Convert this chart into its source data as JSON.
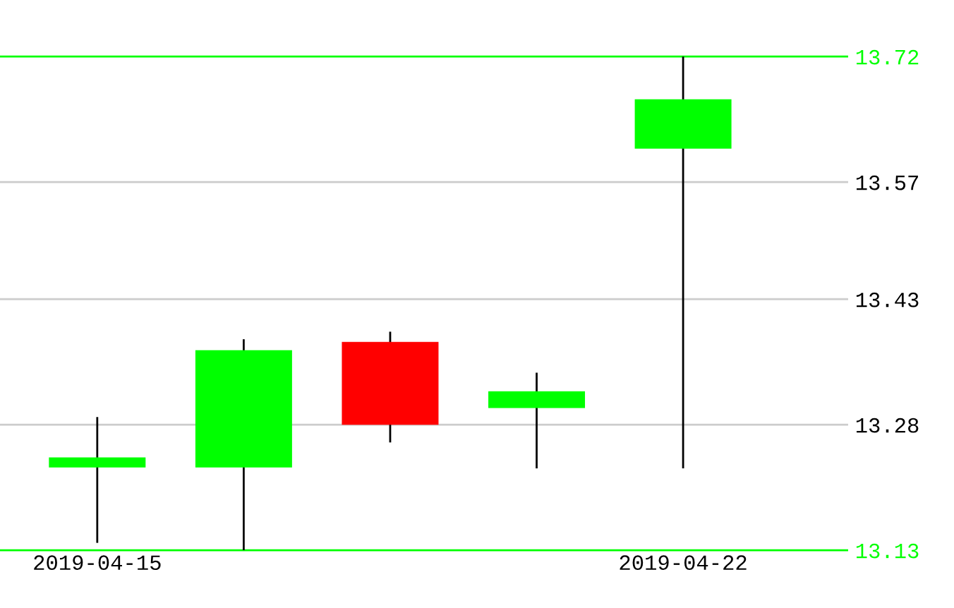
{
  "chart_data": {
    "type": "candlestick",
    "categories": [
      "2019-04-15",
      null,
      null,
      null,
      "2019-04-22"
    ],
    "ohlc": [
      [
        13.229,
        13.288,
        13.14,
        13.241
      ],
      [
        13.229,
        13.381,
        13.13,
        13.369
      ],
      [
        13.379,
        13.39,
        13.26,
        13.28
      ],
      [
        13.3,
        13.341,
        13.229,
        13.32
      ],
      [
        13.61,
        13.72,
        13.229,
        13.669
      ]
    ],
    "colors": [
      "#00ff00",
      "#00ff00",
      "#ff0000",
      "#00ff00",
      "#00ff00"
    ],
    "ylim": [
      13.13,
      13.72
    ],
    "yticks": [
      13.13,
      13.28,
      13.43,
      13.57,
      13.72
    ],
    "grid": "y",
    "legend": false
  }
}
